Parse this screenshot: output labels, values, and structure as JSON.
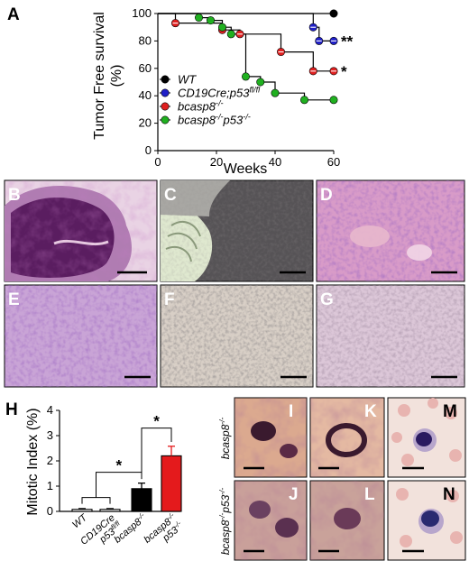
{
  "chart_data": [
    {
      "panel": "A",
      "type": "line",
      "ylabel_lines": [
        "Tumor Free survival",
        "(%)"
      ],
      "xlabel": "Weeks",
      "xlim": [
        0,
        60
      ],
      "ylim": [
        0,
        100
      ],
      "xticks": [
        "0",
        "20",
        "40",
        "60"
      ],
      "yticks": [
        "0",
        "20",
        "40",
        "60",
        "80",
        "100"
      ],
      "legend_position": "bottom-left",
      "series": [
        {
          "name": "WT",
          "color": "#000000",
          "points": [
            [
              0,
              100
            ],
            [
              60,
              100
            ]
          ],
          "markers": [
            [
              60,
              100
            ]
          ],
          "annotation": ""
        },
        {
          "name": "CD19Cre;p53fl/fl",
          "name_main": "CD19Cre;p53",
          "name_sup": "fl/fl",
          "color": "#2020c8",
          "points": [
            [
              0,
              100
            ],
            [
              53,
              100
            ],
            [
              53,
              90
            ],
            [
              55,
              90
            ],
            [
              55,
              80
            ],
            [
              60,
              80
            ]
          ],
          "markers": [
            [
              53,
              90
            ],
            [
              55,
              80
            ],
            [
              60,
              80
            ]
          ],
          "annotation": "**"
        },
        {
          "name": "bcasp8-/-",
          "name_main": "bcasp8",
          "name_sup": "-/-",
          "color": "#e02020",
          "points": [
            [
              0,
              100
            ],
            [
              6,
              100
            ],
            [
              6,
              93
            ],
            [
              22,
              93
            ],
            [
              22,
              88
            ],
            [
              28,
              88
            ],
            [
              28,
              85
            ],
            [
              42,
              85
            ],
            [
              42,
              72
            ],
            [
              53,
              72
            ],
            [
              53,
              58
            ],
            [
              60,
              58
            ]
          ],
          "markers": [
            [
              6,
              93
            ],
            [
              22,
              88
            ],
            [
              28,
              85
            ],
            [
              42,
              72
            ],
            [
              53,
              58
            ],
            [
              60,
              58
            ]
          ],
          "annotation": "*"
        },
        {
          "name": "bcasp8-/-p53-/-",
          "name_main": "bcasp8",
          "name_mid": "p53",
          "name_sup": "-/-",
          "color": "#20b020",
          "points": [
            [
              0,
              100
            ],
            [
              14,
              100
            ],
            [
              14,
              97
            ],
            [
              18,
              97
            ],
            [
              18,
              95
            ],
            [
              22,
              95
            ],
            [
              22,
              90
            ],
            [
              25,
              90
            ],
            [
              25,
              85
            ],
            [
              30,
              85
            ],
            [
              30,
              54
            ],
            [
              35,
              54
            ],
            [
              35,
              50
            ],
            [
              40,
              50
            ],
            [
              40,
              42
            ],
            [
              50,
              42
            ],
            [
              50,
              37
            ],
            [
              60,
              37
            ]
          ],
          "markers": [
            [
              14,
              97
            ],
            [
              18,
              95
            ],
            [
              22,
              90
            ],
            [
              25,
              85
            ],
            [
              30,
              54
            ],
            [
              35,
              50
            ],
            [
              40,
              42
            ],
            [
              50,
              37
            ],
            [
              60,
              37
            ]
          ],
          "annotation": ""
        }
      ]
    },
    {
      "panel": "H",
      "type": "bar",
      "ylabel": "Mitotic Index (%)",
      "ylim": [
        0,
        4
      ],
      "yticks": [
        "0",
        "1",
        "2",
        "3",
        "4"
      ],
      "categories": [
        {
          "lines": [
            "WT"
          ]
        },
        {
          "lines": [
            "CD19Cre",
            "p53fl/fl"
          ]
        },
        {
          "lines": [
            "bcasp8-/-"
          ]
        },
        {
          "lines": [
            "bcasp8-/-",
            "p53-/-"
          ]
        }
      ],
      "values": [
        0.08,
        0.08,
        0.9,
        2.2
      ],
      "errors": [
        0.03,
        0.03,
        0.22,
        0.38
      ],
      "colors": [
        "#ffffff",
        "#ffffff",
        "#000000",
        "#e41a1c"
      ],
      "significance": [
        {
          "label": "*",
          "from": [
            0,
            1
          ],
          "to": [
            2
          ]
        },
        {
          "label": "*",
          "from": [
            2
          ],
          "to": [
            3
          ]
        }
      ]
    }
  ],
  "panel_letters": [
    "A",
    "B",
    "C",
    "D",
    "E",
    "F",
    "G",
    "H",
    "I",
    "J",
    "K",
    "L",
    "M",
    "N"
  ],
  "micrograph_row_labels": {
    "top": "bcasp8-/-",
    "bottom": "bcasp8-/-p53-/-"
  }
}
